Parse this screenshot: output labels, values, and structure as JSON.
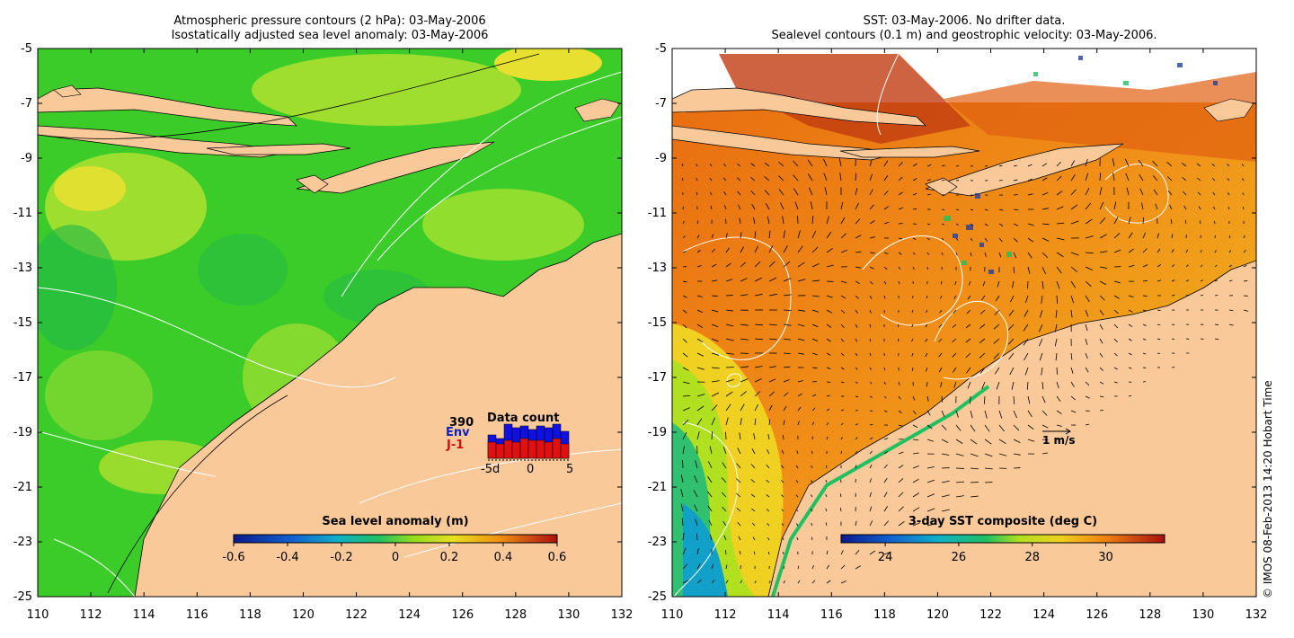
{
  "left_panel": {
    "title_line1": "Atmospheric pressure contours (2 hPa): 03-May-2006",
    "title_line2": "Isostatically adjusted sea level anomaly: 03-May-2006",
    "colorbar": {
      "label": "Sea level anomaly (m)",
      "ticks": [
        "-0.6",
        "-0.4",
        "-0.2",
        "0",
        "0.2",
        "0.4",
        "0.6"
      ]
    },
    "data_count": {
      "title": "Data count",
      "number": "390",
      "env_label": "Env",
      "j1_label": "J-1",
      "xtick_left": "-5d",
      "xtick_mid": "0",
      "xtick_right": "5",
      "env_values": [
        0.65,
        0.55,
        0.95,
        0.85,
        0.9,
        0.8,
        0.9,
        0.85,
        0.95,
        0.75
      ],
      "j1_values": [
        0.45,
        0.4,
        0.5,
        0.45,
        0.55,
        0.5,
        0.5,
        0.45,
        0.55,
        0.4
      ]
    }
  },
  "right_panel": {
    "title_line1": "SST: 03-May-2006. No drifter data.",
    "title_line2": "Sealevel contours (0.1 m) and geostrophic velocity: 03-May-2006.",
    "colorbar": {
      "label": "3-day SST composite (deg C)",
      "ticks": [
        "24",
        "26",
        "28",
        "30"
      ]
    },
    "scale_label": "1 m/s"
  },
  "axes": {
    "y_ticks": [
      "-5",
      "-7",
      "-9",
      "-11",
      "-13",
      "-15",
      "-17",
      "-19",
      "-21",
      "-23",
      "-25"
    ],
    "x_ticks": [
      "110",
      "112",
      "114",
      "116",
      "118",
      "120",
      "122",
      "124",
      "126",
      "128",
      "130",
      "132"
    ]
  },
  "credit": "© IMOS 08-Feb-2013 14:20 Hobart Time",
  "colors": {
    "land": "#f9c99a",
    "sla_ocean": "#7ed91a",
    "sst_ocean": "#f07a10"
  }
}
